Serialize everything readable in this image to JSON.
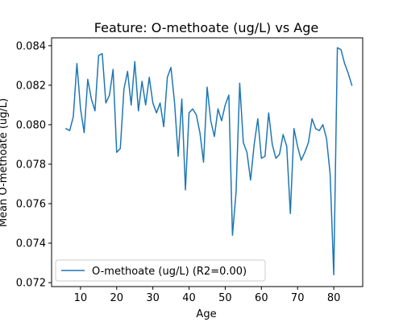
{
  "chart_data": {
    "type": "line",
    "title": "Feature: O-methoate (ug/L) vs Age",
    "xlabel": "Age",
    "ylabel": "Mean O-methoate (ug/L)",
    "xlim": [
      2,
      88
    ],
    "ylim": [
      0.0718,
      0.0844
    ],
    "xticks": [
      10,
      20,
      30,
      40,
      50,
      60,
      70,
      80
    ],
    "yticks": [
      0.072,
      0.074,
      0.076,
      0.078,
      0.08,
      0.082,
      0.084
    ],
    "ytick_labels": [
      "0.072",
      "0.074",
      "0.076",
      "0.078",
      "0.080",
      "0.082",
      "0.084"
    ],
    "grid": false,
    "legend_position": "lower-left",
    "series": [
      {
        "name": "O-methoate (ug/L) (R2=0.00)",
        "color": "#1f77b4",
        "x": [
          6,
          7,
          8,
          9,
          10,
          11,
          12,
          13,
          14,
          15,
          16,
          17,
          18,
          19,
          20,
          21,
          22,
          23,
          24,
          25,
          26,
          27,
          28,
          29,
          30,
          31,
          32,
          33,
          34,
          35,
          36,
          37,
          38,
          39,
          40,
          41,
          42,
          43,
          44,
          45,
          46,
          47,
          48,
          49,
          50,
          51,
          52,
          53,
          54,
          55,
          56,
          57,
          58,
          59,
          60,
          61,
          62,
          63,
          64,
          65,
          66,
          67,
          68,
          69,
          70,
          71,
          72,
          73,
          74,
          75,
          76,
          77,
          78,
          79,
          80,
          81,
          82,
          83,
          84,
          85
        ],
        "y": [
          0.0798,
          0.0797,
          0.0804,
          0.0831,
          0.0808,
          0.0796,
          0.0823,
          0.0813,
          0.0807,
          0.0835,
          0.0836,
          0.0811,
          0.0815,
          0.0828,
          0.0786,
          0.0788,
          0.0818,
          0.0827,
          0.081,
          0.0832,
          0.0807,
          0.0822,
          0.081,
          0.0824,
          0.0811,
          0.0806,
          0.0811,
          0.0799,
          0.0824,
          0.0829,
          0.0811,
          0.0784,
          0.0813,
          0.0767,
          0.0806,
          0.0808,
          0.0805,
          0.0796,
          0.0781,
          0.0819,
          0.0802,
          0.0794,
          0.0808,
          0.0802,
          0.081,
          0.0815,
          0.0744,
          0.0766,
          0.0821,
          0.0791,
          0.0786,
          0.0772,
          0.079,
          0.0803,
          0.0783,
          0.0784,
          0.0806,
          0.079,
          0.0783,
          0.0785,
          0.0795,
          0.0789,
          0.0755,
          0.0798,
          0.0789,
          0.0782,
          0.0786,
          0.0791,
          0.0803,
          0.0798,
          0.0797,
          0.08,
          0.0793,
          0.0775,
          0.0724,
          0.0839,
          0.0838,
          0.0831,
          0.0826,
          0.082
        ]
      }
    ]
  }
}
